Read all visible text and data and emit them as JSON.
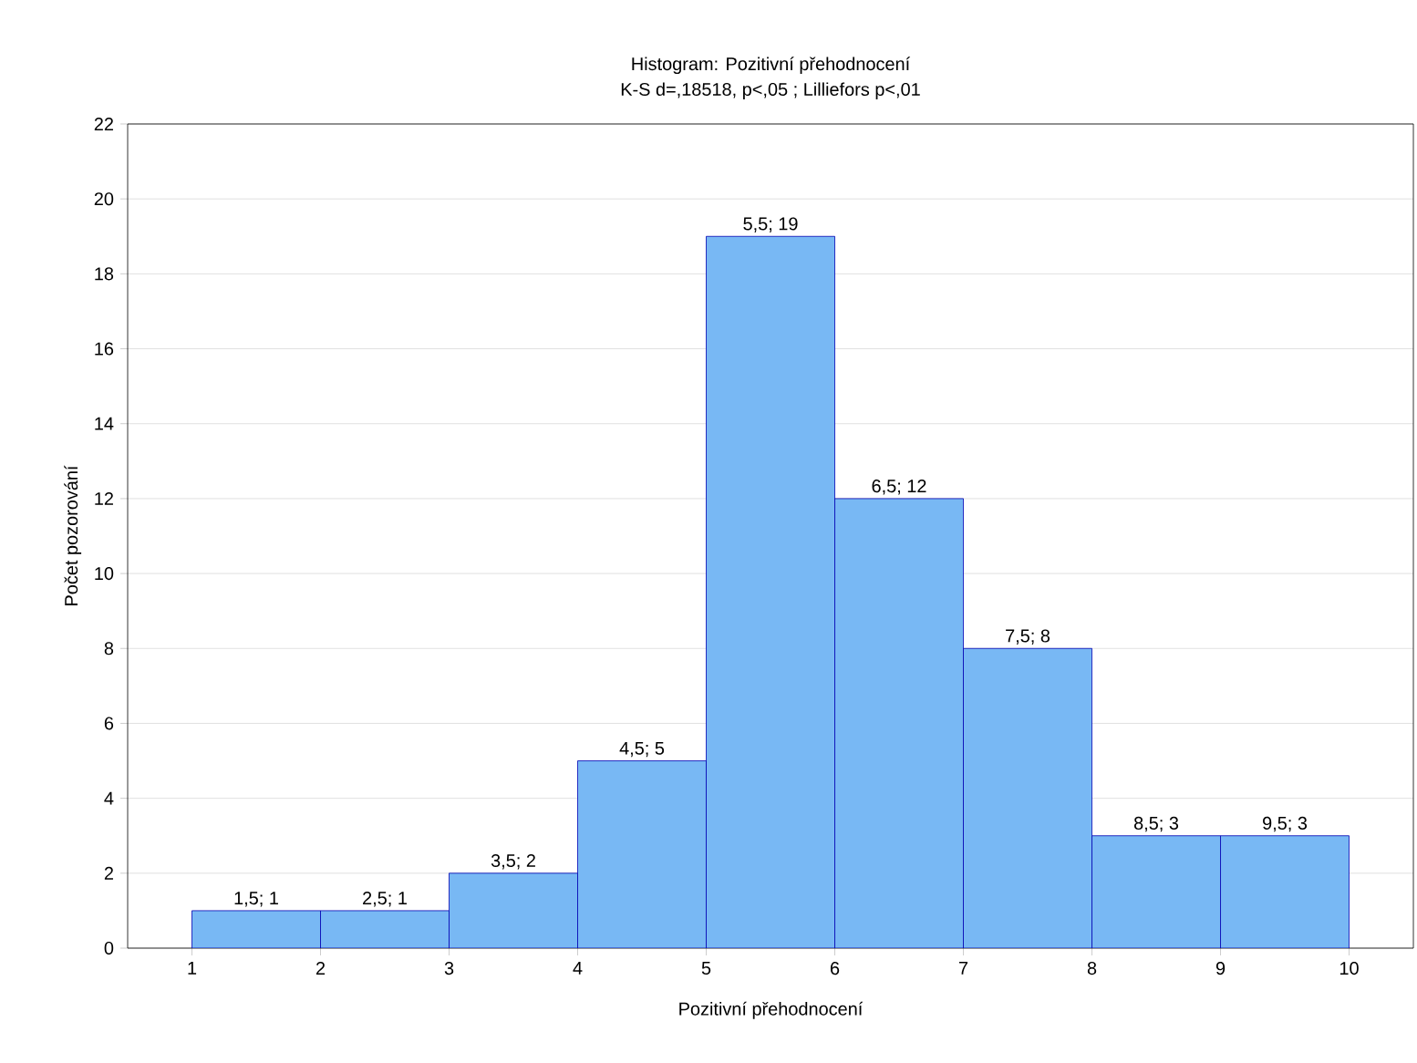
{
  "chart_data": {
    "type": "histogram",
    "title": "Histogram: Pozitivní přehodnocení",
    "subtitle": "K-S d=,18518, p<,05 ; Lilliefors p<,01",
    "xlabel": "Pozitivní přehodnocení",
    "ylabel": "Počet pozorování",
    "bins": [
      1,
      2,
      3,
      4,
      5,
      6,
      7,
      8,
      9,
      10
    ],
    "values": [
      1,
      1,
      2,
      5,
      19,
      12,
      8,
      3,
      3
    ],
    "value_labels": [
      "1,5; 1",
      "2,5; 1",
      "3,5; 2",
      "4,5; 5",
      "5,5; 19",
      "6,5; 12",
      "7,5; 8",
      "8,5; 3",
      "9,5; 3"
    ],
    "color": "#78b8f4",
    "xlim": [
      0.5,
      10.5
    ],
    "ylim": [
      0,
      22
    ],
    "xticks": [
      1,
      2,
      3,
      4,
      5,
      6,
      7,
      8,
      9,
      10
    ],
    "yticks": [
      0,
      2,
      4,
      6,
      8,
      10,
      12,
      14,
      16,
      18,
      20,
      22
    ],
    "grid": "y"
  }
}
